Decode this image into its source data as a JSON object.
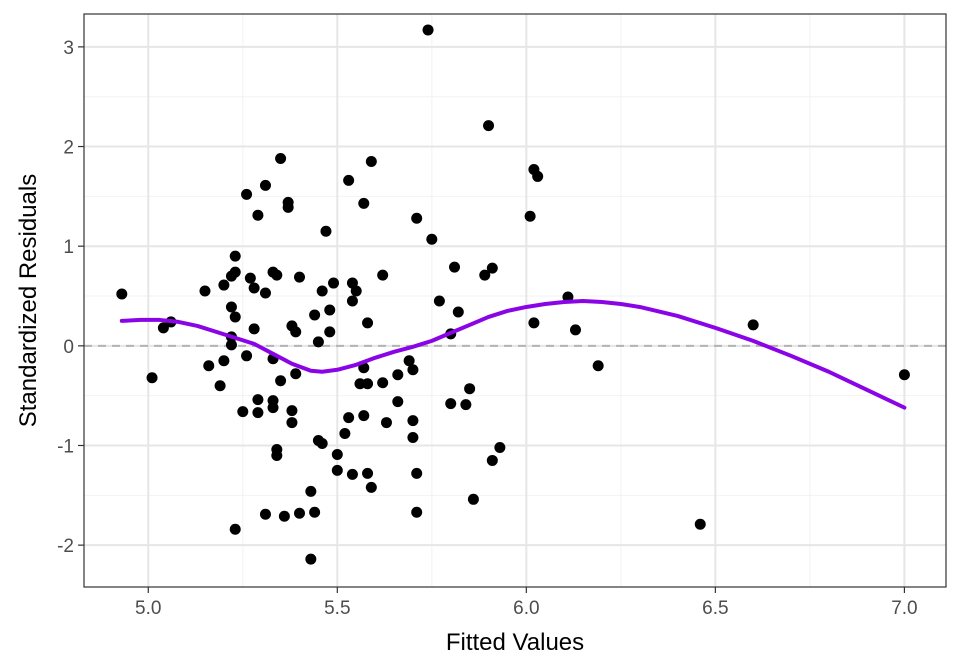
{
  "chart_data": {
    "type": "scatter",
    "title": "",
    "xlabel": "Fitted Values",
    "ylabel": "Standardized Residuals",
    "xlim": [
      4.83,
      7.11
    ],
    "ylim": [
      -2.42,
      3.33
    ],
    "x_ticks": [
      5.0,
      5.5,
      6.0,
      6.5,
      7.0
    ],
    "x_tick_labels": [
      "5.0",
      "5.5",
      "6.0",
      "6.5",
      "7.0"
    ],
    "y_ticks": [
      -2,
      -1,
      0,
      1,
      2,
      3
    ],
    "y_tick_labels": [
      "-2",
      "-1",
      "0",
      "1",
      "2",
      "3"
    ],
    "grid": true,
    "reference_line": {
      "y": 0,
      "style": "dashed",
      "color": "#b3b3b3"
    },
    "colors": {
      "points": "#000000",
      "smooth": "#8a05e6",
      "grid_major": "#e6e6e6",
      "grid_minor": "#f2f2f2",
      "panel_border": "#333333"
    },
    "points": [
      [
        4.93,
        0.52
      ],
      [
        5.01,
        -0.32
      ],
      [
        5.04,
        0.18
      ],
      [
        5.06,
        0.24
      ],
      [
        5.15,
        0.55
      ],
      [
        5.16,
        -0.2
      ],
      [
        5.19,
        -0.4
      ],
      [
        5.2,
        0.61
      ],
      [
        5.2,
        -0.15
      ],
      [
        5.22,
        0.09
      ],
      [
        5.22,
        0.7
      ],
      [
        5.22,
        0.01
      ],
      [
        5.22,
        0.39
      ],
      [
        5.23,
        0.74
      ],
      [
        5.23,
        0.9
      ],
      [
        5.23,
        0.29
      ],
      [
        5.23,
        -1.84
      ],
      [
        5.25,
        -0.66
      ],
      [
        5.26,
        1.52
      ],
      [
        5.26,
        -0.1
      ],
      [
        5.27,
        0.68
      ],
      [
        5.28,
        0.58
      ],
      [
        5.28,
        0.17
      ],
      [
        5.29,
        -0.67
      ],
      [
        5.29,
        -0.54
      ],
      [
        5.29,
        1.31
      ],
      [
        5.31,
        1.61
      ],
      [
        5.31,
        0.53
      ],
      [
        5.31,
        -1.69
      ],
      [
        5.33,
        0.74
      ],
      [
        5.33,
        -0.55
      ],
      [
        5.33,
        -0.62
      ],
      [
        5.33,
        -0.13
      ],
      [
        5.34,
        0.71
      ],
      [
        5.34,
        -1.04
      ],
      [
        5.34,
        -1.1
      ],
      [
        5.35,
        1.88
      ],
      [
        5.35,
        -0.35
      ],
      [
        5.36,
        -1.71
      ],
      [
        5.37,
        1.44
      ],
      [
        5.37,
        1.39
      ],
      [
        5.38,
        0.2
      ],
      [
        5.38,
        -0.65
      ],
      [
        5.38,
        -0.77
      ],
      [
        5.39,
        0.14
      ],
      [
        5.39,
        -0.28
      ],
      [
        5.4,
        0.69
      ],
      [
        5.4,
        -1.68
      ],
      [
        5.43,
        -1.46
      ],
      [
        5.43,
        -2.14
      ],
      [
        5.44,
        0.31
      ],
      [
        5.44,
        -1.67
      ],
      [
        5.45,
        0.04
      ],
      [
        5.45,
        -0.95
      ],
      [
        5.46,
        0.55
      ],
      [
        5.46,
        -0.98
      ],
      [
        5.47,
        1.15
      ],
      [
        5.48,
        0.36
      ],
      [
        5.48,
        0.14
      ],
      [
        5.49,
        0.63
      ],
      [
        5.5,
        -1.09
      ],
      [
        5.5,
        -1.25
      ],
      [
        5.52,
        -0.88
      ],
      [
        5.53,
        -0.72
      ],
      [
        5.53,
        1.66
      ],
      [
        5.54,
        0.63
      ],
      [
        5.54,
        0.45
      ],
      [
        5.54,
        -1.29
      ],
      [
        5.55,
        0.55
      ],
      [
        5.56,
        -0.38
      ],
      [
        5.57,
        -0.22
      ],
      [
        5.57,
        1.43
      ],
      [
        5.57,
        -0.7
      ],
      [
        5.58,
        0.23
      ],
      [
        5.58,
        -0.38
      ],
      [
        5.58,
        -1.28
      ],
      [
        5.59,
        1.85
      ],
      [
        5.59,
        -1.42
      ],
      [
        5.62,
        0.71
      ],
      [
        5.62,
        -0.37
      ],
      [
        5.63,
        -0.77
      ],
      [
        5.66,
        -0.29
      ],
      [
        5.66,
        -0.56
      ],
      [
        5.69,
        -0.15
      ],
      [
        5.7,
        -0.24
      ],
      [
        5.7,
        -0.75
      ],
      [
        5.7,
        -0.92
      ],
      [
        5.71,
        1.28
      ],
      [
        5.71,
        -1.28
      ],
      [
        5.71,
        -1.67
      ],
      [
        5.74,
        3.17
      ],
      [
        5.75,
        1.07
      ],
      [
        5.77,
        0.45
      ],
      [
        5.8,
        0.12
      ],
      [
        5.8,
        -0.58
      ],
      [
        5.81,
        0.79
      ],
      [
        5.82,
        0.34
      ],
      [
        5.84,
        -0.59
      ],
      [
        5.85,
        -0.43
      ],
      [
        5.86,
        -1.54
      ],
      [
        5.89,
        0.71
      ],
      [
        5.9,
        2.21
      ],
      [
        5.91,
        0.78
      ],
      [
        5.91,
        -1.15
      ],
      [
        5.93,
        -1.02
      ],
      [
        6.01,
        1.3
      ],
      [
        6.02,
        1.77
      ],
      [
        6.02,
        0.23
      ],
      [
        6.03,
        1.7
      ],
      [
        6.11,
        0.49
      ],
      [
        6.13,
        0.16
      ],
      [
        6.19,
        -0.2
      ],
      [
        6.46,
        -1.79
      ],
      [
        6.6,
        0.21
      ],
      [
        7.0,
        -0.29
      ]
    ],
    "smooth_line": {
      "x": [
        4.93,
        4.98,
        5.03,
        5.08,
        5.13,
        5.18,
        5.23,
        5.28,
        5.33,
        5.38,
        5.43,
        5.46,
        5.5,
        5.55,
        5.6,
        5.65,
        5.7,
        5.75,
        5.8,
        5.85,
        5.9,
        5.95,
        6.0,
        6.05,
        6.1,
        6.15,
        6.2,
        6.25,
        6.3,
        6.4,
        6.5,
        6.6,
        6.7,
        6.8,
        6.9,
        7.0
      ],
      "y": [
        0.25,
        0.26,
        0.26,
        0.24,
        0.2,
        0.14,
        0.08,
        0.02,
        -0.08,
        -0.18,
        -0.25,
        -0.26,
        -0.24,
        -0.19,
        -0.12,
        -0.06,
        -0.01,
        0.05,
        0.13,
        0.21,
        0.29,
        0.35,
        0.39,
        0.42,
        0.44,
        0.45,
        0.44,
        0.42,
        0.39,
        0.3,
        0.18,
        0.05,
        -0.1,
        -0.26,
        -0.44,
        -0.62
      ]
    }
  }
}
